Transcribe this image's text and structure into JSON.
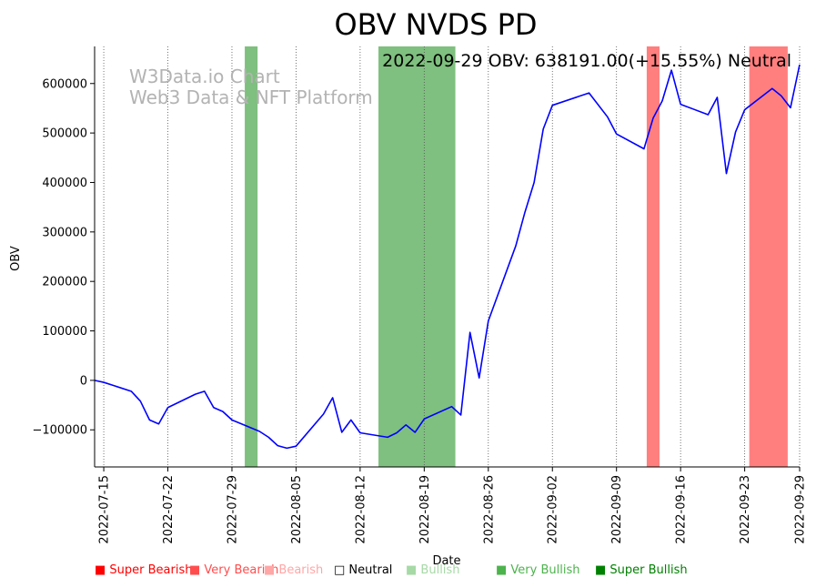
{
  "chart_data": {
    "type": "line",
    "title": "OBV NVDS PD",
    "annotation": "2022-09-29 OBV: 638191.00(+15.55%) Neutral",
    "watermark": [
      "W3Data.io Chart",
      "Web3 Data & NFT Platform"
    ],
    "xlabel": "Date",
    "ylabel": "OBV",
    "xlim": [
      "2022-07-14",
      "2022-09-29"
    ],
    "ylim": [
      -175000,
      675000
    ],
    "yticks": [
      -100000,
      0,
      100000,
      200000,
      300000,
      400000,
      500000,
      600000
    ],
    "ytick_labels": [
      "−100000",
      "0",
      "100000",
      "200000",
      "300000",
      "400000",
      "500000",
      "600000"
    ],
    "xticks": [
      "2022-07-15",
      "2022-07-22",
      "2022-07-29",
      "2022-08-05",
      "2022-08-12",
      "2022-08-19",
      "2022-08-26",
      "2022-09-02",
      "2022-09-09",
      "2022-09-16",
      "2022-09-23",
      "2022-09-29"
    ],
    "series": [
      {
        "name": "OBV",
        "color": "#0000ff",
        "points": [
          [
            "2022-07-14",
            0
          ],
          [
            "2022-07-15",
            -4000
          ],
          [
            "2022-07-18",
            -22000
          ],
          [
            "2022-07-19",
            -42000
          ],
          [
            "2022-07-20",
            -80000
          ],
          [
            "2022-07-21",
            -88000
          ],
          [
            "2022-07-22",
            -55000
          ],
          [
            "2022-07-25",
            -28000
          ],
          [
            "2022-07-26",
            -22000
          ],
          [
            "2022-07-27",
            -55000
          ],
          [
            "2022-07-28",
            -63000
          ],
          [
            "2022-07-29",
            -80000
          ],
          [
            "2022-08-01",
            -103000
          ],
          [
            "2022-08-02",
            -115000
          ],
          [
            "2022-08-03",
            -132000
          ],
          [
            "2022-08-04",
            -137000
          ],
          [
            "2022-08-05",
            -133000
          ],
          [
            "2022-08-08",
            -68000
          ],
          [
            "2022-08-09",
            -35000
          ],
          [
            "2022-08-10",
            -105000
          ],
          [
            "2022-08-11",
            -80000
          ],
          [
            "2022-08-12",
            -106000
          ],
          [
            "2022-08-15",
            -115000
          ],
          [
            "2022-08-16",
            -106000
          ],
          [
            "2022-08-17",
            -90000
          ],
          [
            "2022-08-18",
            -105000
          ],
          [
            "2022-08-19",
            -78000
          ],
          [
            "2022-08-22",
            -53000
          ],
          [
            "2022-08-23",
            -70000
          ],
          [
            "2022-08-24",
            97000
          ],
          [
            "2022-08-25",
            5000
          ],
          [
            "2022-08-26",
            120000
          ],
          [
            "2022-08-29",
            272000
          ],
          [
            "2022-08-30",
            340000
          ],
          [
            "2022-08-31",
            400000
          ],
          [
            "2022-09-01",
            508000
          ],
          [
            "2022-09-02",
            556000
          ],
          [
            "2022-09-06",
            581000
          ],
          [
            "2022-09-08",
            533000
          ],
          [
            "2022-09-09",
            498000
          ],
          [
            "2022-09-12",
            468000
          ],
          [
            "2022-09-13",
            530000
          ],
          [
            "2022-09-14",
            565000
          ],
          [
            "2022-09-15",
            627000
          ],
          [
            "2022-09-16",
            558000
          ],
          [
            "2022-09-19",
            537000
          ],
          [
            "2022-09-20",
            572000
          ],
          [
            "2022-09-21",
            418000
          ],
          [
            "2022-09-22",
            502000
          ],
          [
            "2022-09-23",
            547000
          ],
          [
            "2022-09-26",
            590000
          ],
          [
            "2022-09-27",
            575000
          ],
          [
            "2022-09-28",
            551000
          ],
          [
            "2022-09-29",
            638191
          ]
        ]
      }
    ],
    "bands": [
      {
        "start": "2022-07-30.4",
        "end": "2022-07-31.8",
        "category": "Very Bullish",
        "color": "#7fbf7f"
      },
      {
        "start": "2022-08-14",
        "end": "2022-08-22.4",
        "category": "Very Bullish",
        "color": "#7fbf7f"
      },
      {
        "start": "2022-09-12.3",
        "end": "2022-09-13.7",
        "category": "Very Bearish",
        "color": "#ff7f7f"
      },
      {
        "start": "2022-09-23.5",
        "end": "2022-09-27.7",
        "category": "Very Bearish",
        "color": "#ff7f7f"
      }
    ],
    "legend": [
      {
        "label": "Super Bearish",
        "symbol": "■",
        "color": "#ff0000"
      },
      {
        "label": "Very Bearish",
        "symbol": "■",
        "color": "#ff4d4d"
      },
      {
        "label": "Bearish",
        "symbol": "■",
        "color": "#ffa6a6"
      },
      {
        "label": "Neutral",
        "symbol": "□",
        "color": "#000000"
      },
      {
        "label": "Bullish",
        "symbol": "■",
        "color": "#a6d9a6"
      },
      {
        "label": "Very Bullish",
        "symbol": "■",
        "color": "#4db34d"
      },
      {
        "label": "Super Bullish",
        "symbol": "■",
        "color": "#008000"
      }
    ],
    "legend_position": "bottom"
  }
}
